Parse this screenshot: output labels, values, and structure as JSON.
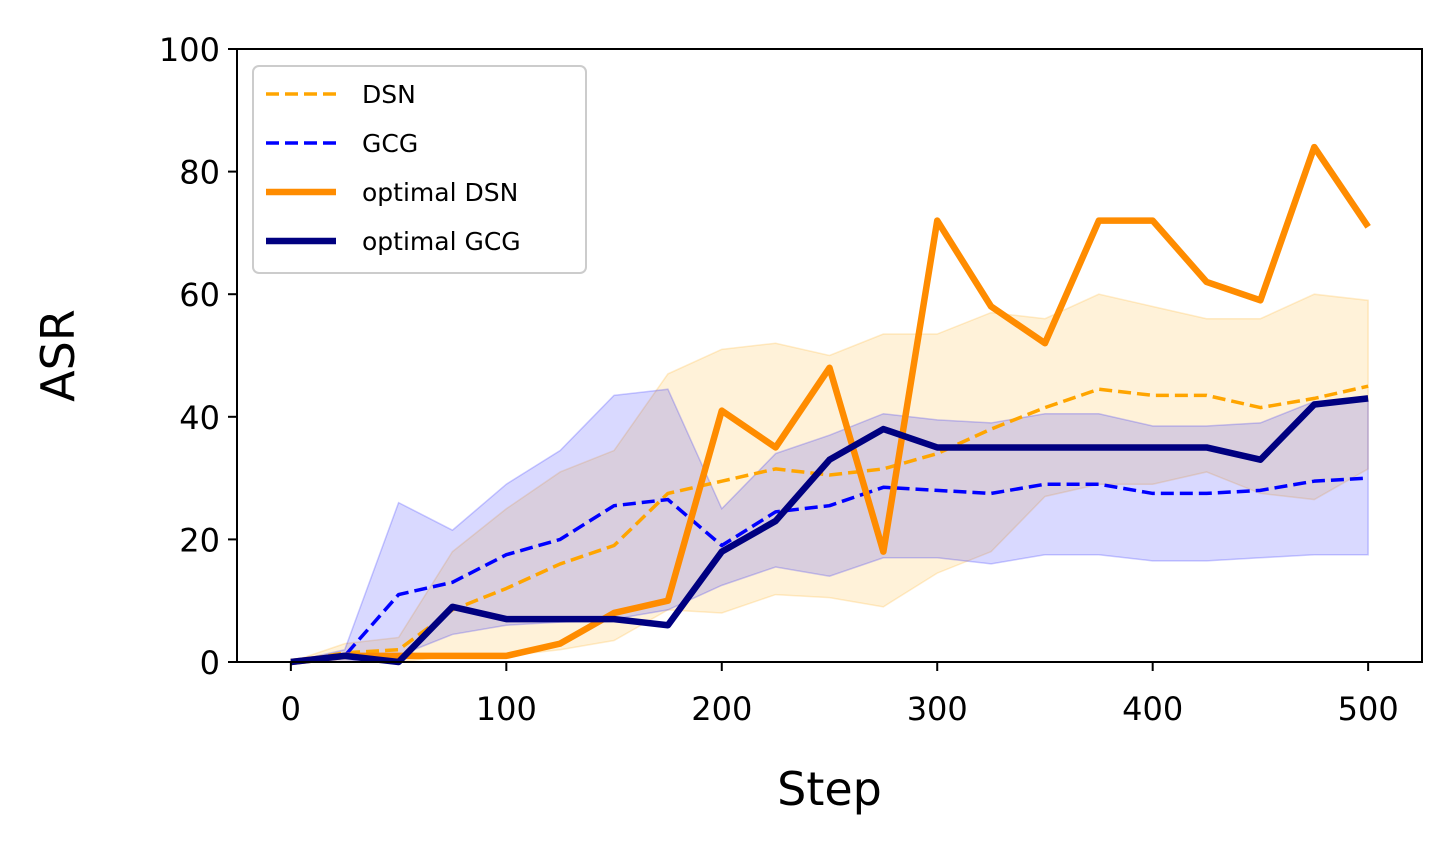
{
  "chart_data": {
    "type": "line",
    "title": "",
    "xlabel": "Step",
    "ylabel": "ASR",
    "xlim": [
      -25,
      525
    ],
    "ylim": [
      0,
      100
    ],
    "xticks": [
      0,
      100,
      200,
      300,
      400,
      500
    ],
    "yticks": [
      0,
      20,
      40,
      60,
      80,
      100
    ],
    "grid": false,
    "legend_position": "top-left",
    "x": [
      0,
      25,
      50,
      75,
      100,
      125,
      150,
      175,
      200,
      225,
      250,
      275,
      300,
      325,
      350,
      375,
      400,
      425,
      450,
      475,
      500
    ],
    "series": [
      {
        "name": "DSN",
        "style": "dashed",
        "color": "#ffa500",
        "values": [
          0,
          1.5,
          2,
          8.5,
          12,
          16,
          19,
          27.5,
          29.5,
          31.5,
          30.5,
          31.5,
          34,
          38,
          41.5,
          44.5,
          43.5,
          43.5,
          41.5,
          43,
          45
        ],
        "band_upper": [
          0,
          3,
          4,
          18,
          25,
          31,
          34.5,
          47,
          51,
          52,
          50,
          53.5,
          53.5,
          57,
          56,
          60,
          58,
          56,
          56,
          60,
          59
        ],
        "band_lower": [
          0,
          0,
          0,
          1,
          1,
          2,
          3.5,
          8.5,
          8,
          11,
          10.5,
          9,
          14.5,
          18,
          27,
          29,
          29,
          31,
          27.5,
          26.5,
          31.5
        ]
      },
      {
        "name": "GCG",
        "style": "dashed",
        "color": "#0000ff",
        "values": [
          0,
          1,
          11,
          13,
          17.5,
          20,
          25.5,
          26.5,
          19,
          24.5,
          25.5,
          28.5,
          28,
          27.5,
          29,
          29,
          27.5,
          27.5,
          28,
          29.5,
          30
        ],
        "band_upper": [
          0,
          2,
          26,
          21.5,
          29,
          34.5,
          43.5,
          44.5,
          25,
          34,
          37,
          40.5,
          39.5,
          39,
          40.5,
          40.5,
          38.5,
          38.5,
          39,
          42.5,
          42.5
        ],
        "band_lower": [
          0,
          0,
          1,
          4.5,
          6,
          6.5,
          7,
          8.5,
          12.5,
          15.5,
          14,
          17,
          17,
          16,
          17.5,
          17.5,
          16.5,
          16.5,
          17,
          17.5,
          17.5
        ]
      },
      {
        "name": "optimal DSN",
        "style": "solid",
        "color": "#ff8c00",
        "values": [
          0,
          1,
          1,
          1,
          1,
          3,
          8,
          10,
          41,
          35,
          48,
          18,
          72,
          58,
          52,
          72,
          72,
          62,
          59,
          84,
          71
        ]
      },
      {
        "name": "optimal GCG",
        "style": "solid",
        "color": "#000080",
        "values": [
          0,
          1,
          0,
          9,
          7,
          7,
          7,
          6,
          18,
          23,
          33,
          38,
          35,
          35,
          35,
          35,
          35,
          35,
          33,
          42,
          43
        ]
      }
    ]
  }
}
